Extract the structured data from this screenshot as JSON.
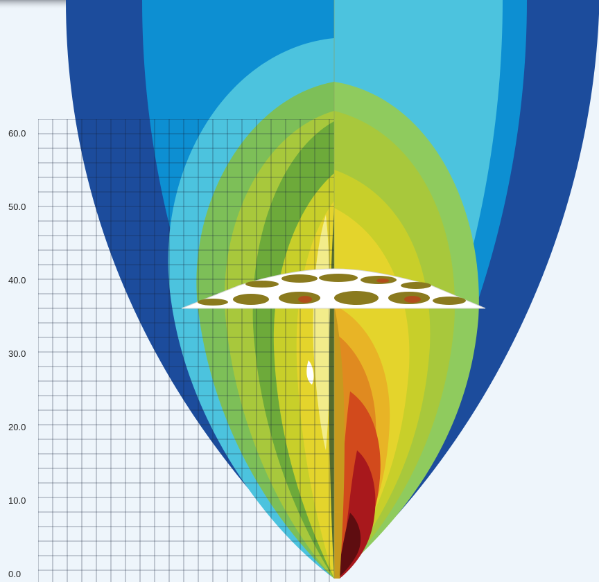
{
  "y_axis": {
    "tick_labels": [
      "0.0",
      "10.0",
      "20.0",
      "30.0",
      "40.0",
      "50.0",
      "60.0"
    ]
  },
  "colors": {
    "background": "#eef5fb",
    "contour_bands": [
      "#1c4c9c",
      "#0d8fd2",
      "#4cc3de",
      "#7dbf58",
      "#a8c83c",
      "#c8cf2a",
      "#e4d42c",
      "#f0c01c",
      "#e08a20",
      "#d24a1c",
      "#a8181c",
      "#5e0d10"
    ],
    "grid_line": "#15203a",
    "disc": "#ffffff"
  }
}
